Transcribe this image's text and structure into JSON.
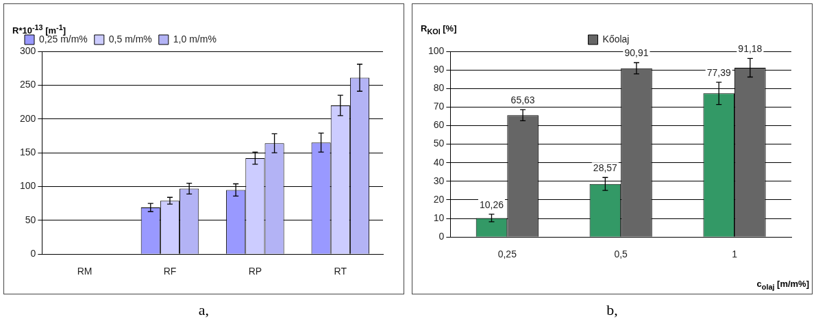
{
  "chart_data": [
    {
      "type": "bar",
      "ylabel": "R*10$^{-13}$ [m$^{-1}$]",
      "categories": [
        "RM",
        "RF",
        "RP",
        "RT"
      ],
      "ylim": [
        0,
        300
      ],
      "yticks": [
        0,
        50,
        100,
        150,
        200,
        250,
        300
      ],
      "grid": "y",
      "legend": "top left",
      "annotations": [
        "a,"
      ],
      "series": [
        {
          "name": "0,25 m/m%",
          "color": "#9999ff",
          "values": [
            null,
            69,
            95,
            165
          ],
          "errors": [
            null,
            6,
            9,
            14
          ]
        },
        {
          "name": "0,5 m/m%",
          "color": "#ccccff",
          "values": [
            null,
            79,
            142,
            220
          ],
          "errors": [
            null,
            5,
            9,
            15
          ]
        },
        {
          "name": "1,0 m/m%",
          "color": "#b3b3f5",
          "values": [
            null,
            97,
            164,
            261
          ],
          "errors": [
            null,
            8,
            14,
            20
          ]
        }
      ]
    },
    {
      "type": "bar",
      "ylabel": "R$_{KOI}$ [%]",
      "xlabel": "c$_{olaj}$ [m/m%]",
      "categories": [
        "0,25",
        "0,5",
        "1"
      ],
      "ylim": [
        0,
        100
      ],
      "yticks": [
        0,
        10,
        20,
        30,
        40,
        50,
        60,
        70,
        80,
        90,
        100
      ],
      "grid": "y",
      "legend": "top",
      "annotations": [
        "b,"
      ],
      "series": [
        {
          "color": "#339966",
          "values": [
            10.26,
            28.57,
            77.39
          ],
          "errors": [
            2,
            3.5,
            6
          ],
          "value_labels": [
            "10,26",
            "28,57",
            "77,39"
          ]
        },
        {
          "name": "Kőolaj",
          "color": "#666666",
          "values": [
            65.63,
            90.91,
            91.18
          ],
          "errors": [
            3,
            3,
            5
          ],
          "value_labels": [
            "65,63",
            "90,91",
            "91,18"
          ]
        }
      ]
    }
  ]
}
